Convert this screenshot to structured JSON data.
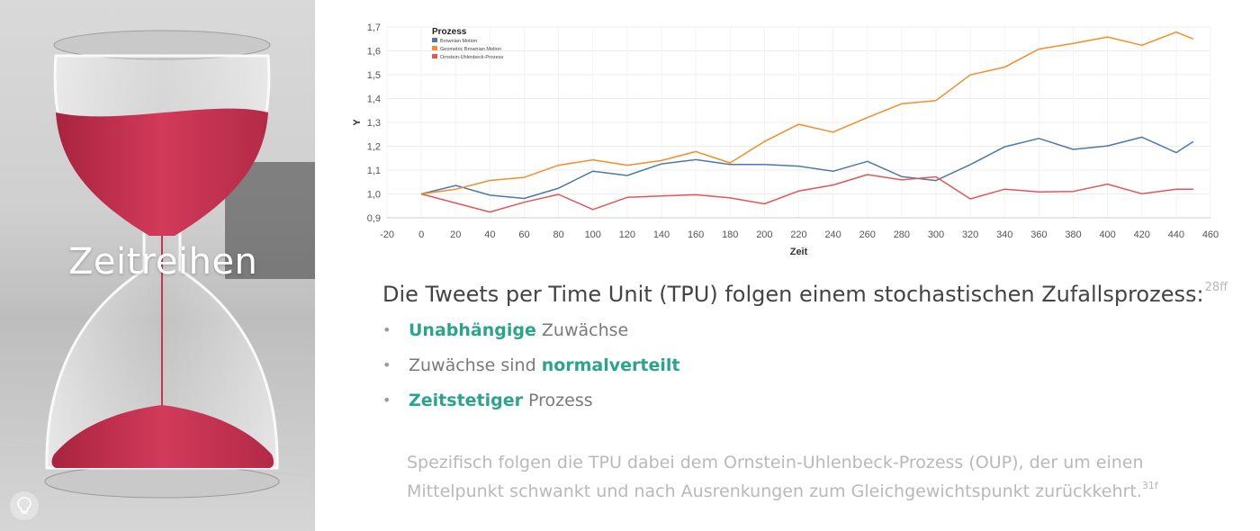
{
  "left_panel": {
    "title": "Zeitreihen",
    "icon": "lightbulb-icon"
  },
  "chart_data": {
    "type": "line",
    "legend": {
      "title": "Prozess",
      "placement": "top-left"
    },
    "xlabel": "Zeit",
    "ylabel": "Y",
    "xlim": [
      -20,
      460
    ],
    "ylim": [
      0.9,
      1.7
    ],
    "xticks": [
      -20,
      0,
      20,
      40,
      60,
      80,
      100,
      120,
      140,
      160,
      180,
      200,
      220,
      240,
      260,
      280,
      300,
      320,
      340,
      360,
      380,
      400,
      420,
      440,
      460
    ],
    "yticks": [
      "0,9",
      "1,0",
      "1,1",
      "1,2",
      "1,3",
      "1,4",
      "1,5",
      "1,6",
      "1,7"
    ],
    "grid": true,
    "x": [
      0,
      20,
      40,
      60,
      80,
      100,
      120,
      140,
      160,
      180,
      200,
      220,
      240,
      260,
      280,
      300,
      320,
      340,
      360,
      380,
      400,
      420,
      440,
      450
    ],
    "series": [
      {
        "name": "Brownian Motion",
        "color": "#4e79a7",
        "values": [
          1.0,
          1.03,
          0.99,
          0.98,
          1.03,
          1.1,
          1.08,
          1.12,
          1.14,
          1.12,
          1.13,
          1.12,
          1.1,
          1.13,
          1.07,
          1.05,
          1.13,
          1.2,
          1.24,
          1.18,
          1.2,
          1.23,
          1.18,
          1.22
        ]
      },
      {
        "name": "Geometric Brownian Motion",
        "color": "#f28e2b",
        "values": [
          1.0,
          1.02,
          1.05,
          1.08,
          1.12,
          1.15,
          1.11,
          1.14,
          1.17,
          1.14,
          1.22,
          1.3,
          1.25,
          1.32,
          1.37,
          1.4,
          1.5,
          1.54,
          1.6,
          1.63,
          1.65,
          1.63,
          1.68,
          1.65
        ]
      },
      {
        "name": "Ornstein-Uhlenbeck-Prozess",
        "color": "#e15759",
        "values": [
          1.0,
          0.96,
          0.93,
          0.97,
          1.0,
          0.93,
          0.98,
          0.99,
          1.0,
          0.99,
          0.96,
          1.01,
          1.03,
          1.08,
          1.06,
          1.08,
          0.98,
          1.02,
          1.0,
          1.01,
          1.04,
          1.01,
          1.02,
          1.02
        ]
      }
    ]
  },
  "headline": {
    "text": "Die Tweets per Time Unit (TPU) folgen einem stochastischen Zufallsprozess:",
    "ref": "28ff"
  },
  "bullets": [
    {
      "bold": "Unabhängige",
      "rest": " Zuwächse"
    },
    {
      "pre": "Zuwächse sind ",
      "bold": "normalverteilt"
    },
    {
      "bold": "Zeitstetiger",
      "rest": " Prozess"
    }
  ],
  "bullet_marker": "•",
  "footnote": {
    "text": "Spezifisch folgen die TPU dabei dem Ornstein-Uhlenbeck-Prozess (OUP), der um einen Mittelpunkt schwankt und nach Ausrenkungen zum Gleichgewichtspunkt zurückkehrt.",
    "ref": "31f"
  },
  "colors": {
    "accent": "#2aa58c",
    "title": "#444444",
    "body": "#7a7a7a",
    "muted": "#b9b9b9"
  }
}
